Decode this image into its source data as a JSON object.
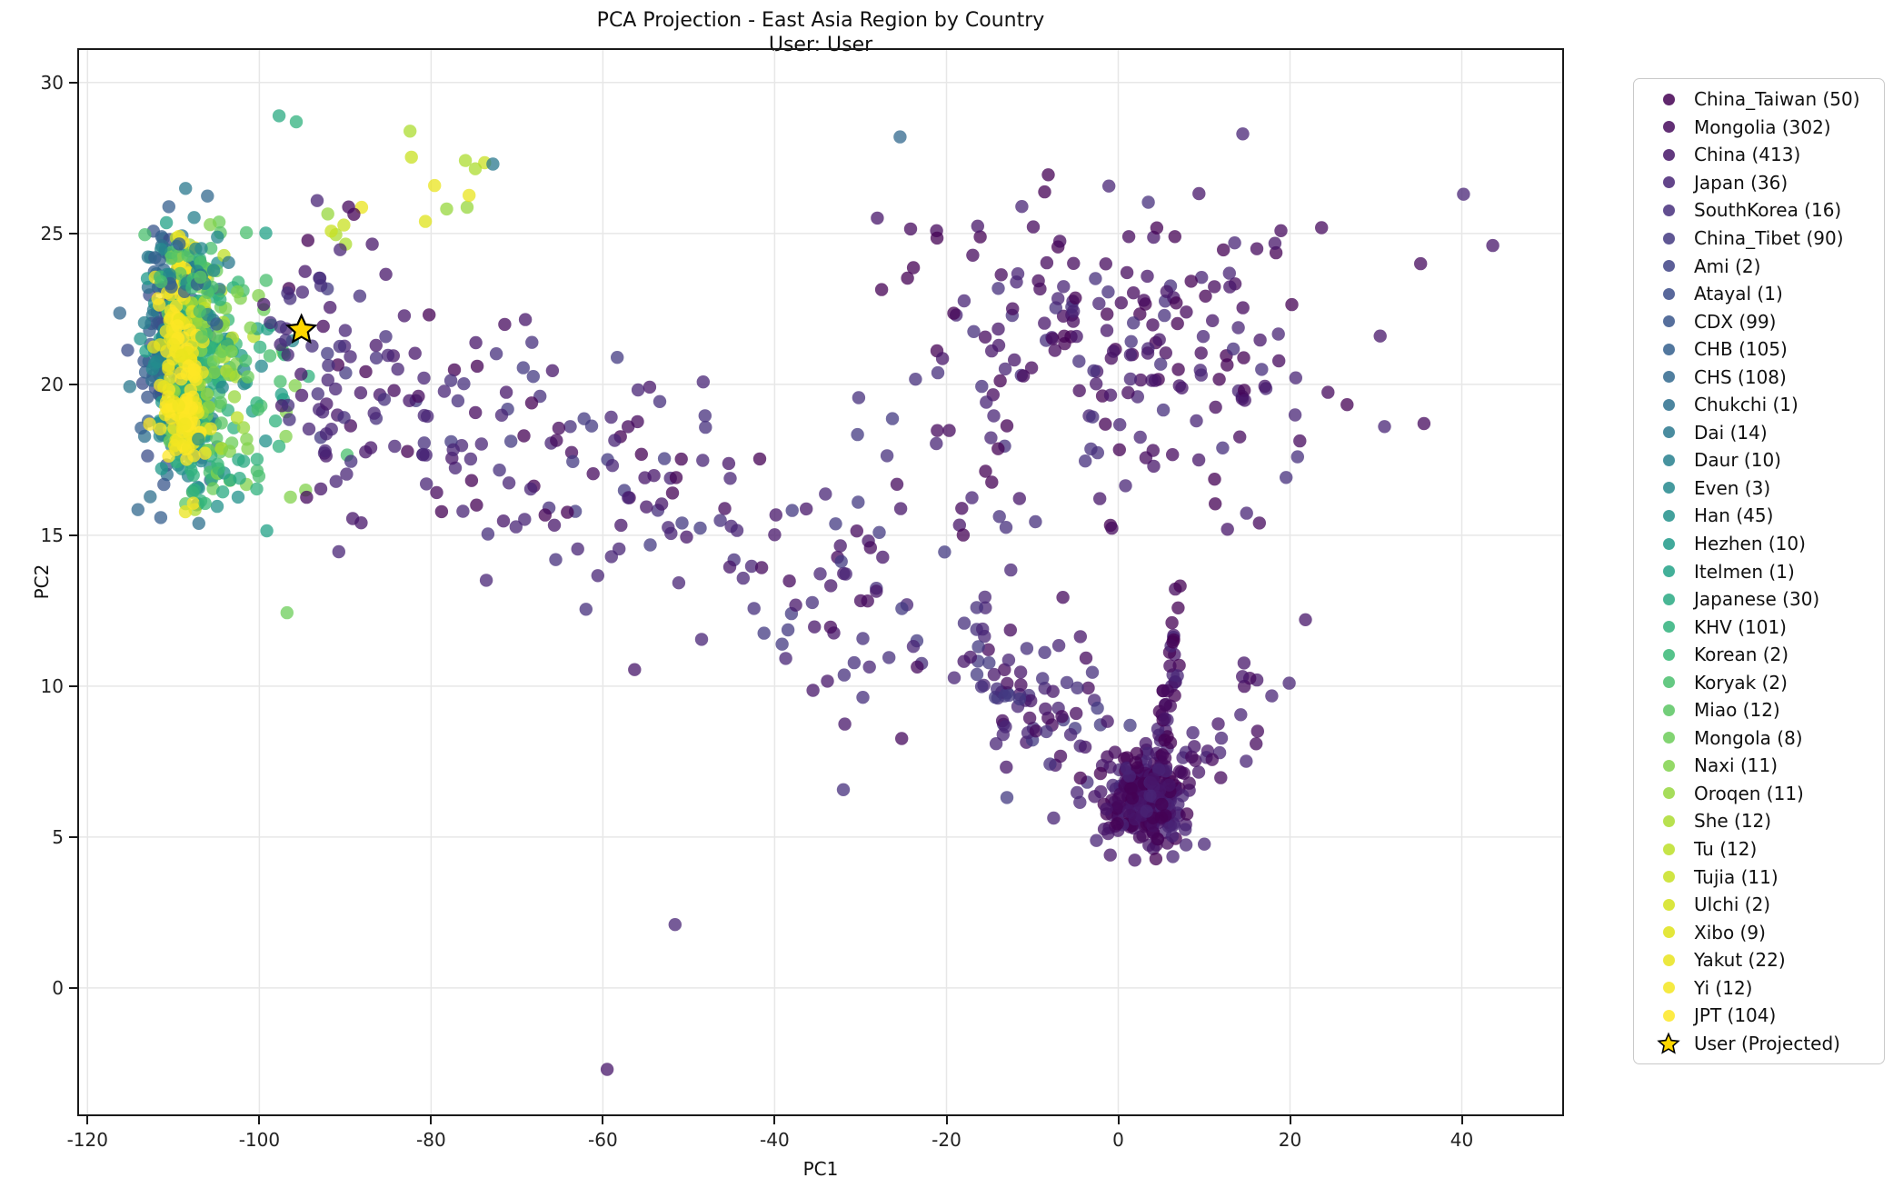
{
  "title": {
    "line1": "PCA Projection - East Asia Region by Country",
    "line2": "User: User"
  },
  "colors": {
    "background": "#ffffff",
    "grid": "#e7e7e7",
    "frame": "#1a1a1a",
    "tick": "#1a1a1a",
    "star_fill": "#FFD700",
    "star_edge": "#000000"
  },
  "chart_data": {
    "type": "scatter",
    "title": "PCA Projection - East Asia Region by Country",
    "subtitle": "User: User",
    "xlabel": "PC1",
    "ylabel": "PC2",
    "xlim": [
      -121.2,
      51.9
    ],
    "ylim": [
      -4.25,
      31.14
    ],
    "xticks": [
      -120,
      -100,
      -80,
      -60,
      -40,
      -20,
      0,
      20,
      40
    ],
    "yticks": [
      0,
      5,
      10,
      15,
      20,
      25,
      30
    ],
    "grid": true,
    "legend_position": "outside-right",
    "marker_alpha": 0.75,
    "marker_radius_px": 7.2,
    "categories": [
      {
        "name": "China_Taiwan",
        "count": 50,
        "label": "China_Taiwan (50)",
        "color": "#440154"
      },
      {
        "name": "Mongolia",
        "count": 302,
        "label": "Mongolia (302)",
        "color": "#460a5d"
      },
      {
        "name": "China",
        "count": 413,
        "label": "China (413)",
        "color": "#471669"
      },
      {
        "name": "Japan",
        "count": 36,
        "label": "Japan (36)",
        "color": "#482475"
      },
      {
        "name": "SouthKorea",
        "count": 16,
        "label": "SouthKorea (16)",
        "color": "#462f7c"
      },
      {
        "name": "China_Tibet",
        "count": 90,
        "label": "China_Tibet (90)",
        "color": "#433981"
      },
      {
        "name": "Ami",
        "count": 2,
        "label": "Ami (2)",
        "color": "#404386"
      },
      {
        "name": "Atayal",
        "count": 1,
        "label": "Atayal (1)",
        "color": "#3c4d8a"
      },
      {
        "name": "CDX",
        "count": 99,
        "label": "CDX (99)",
        "color": "#38568b"
      },
      {
        "name": "CHB",
        "count": 105,
        "label": "CHB (105)",
        "color": "#345f8d"
      },
      {
        "name": "CHS",
        "count": 108,
        "label": "CHS (108)",
        "color": "#31688e"
      },
      {
        "name": "Chukchi",
        "count": 1,
        "label": "Chukchi (1)",
        "color": "#2d708e"
      },
      {
        "name": "Dai",
        "count": 14,
        "label": "Dai (14)",
        "color": "#2a788e"
      },
      {
        "name": "Daur",
        "count": 10,
        "label": "Daur (10)",
        "color": "#27808e"
      },
      {
        "name": "Even",
        "count": 3,
        "label": "Even (3)",
        "color": "#24888d"
      },
      {
        "name": "Han",
        "count": 45,
        "label": "Han (45)",
        "color": "#22918b"
      },
      {
        "name": "Hezhen",
        "count": 10,
        "label": "Hezhen (10)",
        "color": "#209a8a"
      },
      {
        "name": "Itelmen",
        "count": 1,
        "label": "Itelmen (1)",
        "color": "#22a287"
      },
      {
        "name": "Japanese",
        "count": 30,
        "label": "Japanese (30)",
        "color": "#29a982"
      },
      {
        "name": "KHV",
        "count": 101,
        "label": "KHV (101)",
        "color": "#30b17d"
      },
      {
        "name": "Korean",
        "count": 2,
        "label": "Korean (2)",
        "color": "#38b877"
      },
      {
        "name": "Koryak",
        "count": 2,
        "label": "Koryak (2)",
        "color": "#4abf6d"
      },
      {
        "name": "Miao",
        "count": 12,
        "label": "Miao (12)",
        "color": "#5bc663"
      },
      {
        "name": "Mongola",
        "count": 8,
        "label": "Mongola (8)",
        "color": "#6ccd59"
      },
      {
        "name": "Naxi",
        "count": 11,
        "label": "Naxi (11)",
        "color": "#81d24c"
      },
      {
        "name": "Oroqen",
        "count": 11,
        "label": "Oroqen (11)",
        "color": "#97d73e"
      },
      {
        "name": "She",
        "count": 12,
        "label": "She (12)",
        "color": "#acdc30"
      },
      {
        "name": "Tu",
        "count": 12,
        "label": "Tu (12)",
        "color": "#bcdf28"
      },
      {
        "name": "Tujia",
        "count": 11,
        "label": "Tujia (11)",
        "color": "#c8e022"
      },
      {
        "name": "Ulchi",
        "count": 2,
        "label": "Ulchi (2)",
        "color": "#d4e21c"
      },
      {
        "name": "Xibo",
        "count": 9,
        "label": "Xibo (9)",
        "color": "#dfe319"
      },
      {
        "name": "Yakut",
        "count": 22,
        "label": "Yakut (22)",
        "color": "#e9e41d"
      },
      {
        "name": "Yi",
        "count": 12,
        "label": "Yi (12)",
        "color": "#f3e621"
      },
      {
        "name": "JPT",
        "count": 104,
        "label": "JPT (104)",
        "color": "#fde725"
      }
    ],
    "user_label": "User (Projected)",
    "user_point": {
      "x": -95.1,
      "y": 21.8,
      "color": "#FFD700"
    },
    "clusters": [
      {
        "name": "ref-blue",
        "type": "gauss",
        "n": 170,
        "cx": -110.2,
        "cy": 20.9,
        "sx": 1.8,
        "sy": 2.0,
        "colors": [
          "#38568b",
          "#345f8d",
          "#31688e",
          "#3c4d8a",
          "#2d708e",
          "#2a788e"
        ]
      },
      {
        "name": "ref-teal",
        "type": "gauss",
        "n": 170,
        "cx": -108.4,
        "cy": 20.2,
        "sx": 1.9,
        "sy": 2.0,
        "colors": [
          "#27808e",
          "#24888d",
          "#22918b",
          "#209a8a",
          "#22a287"
        ]
      },
      {
        "name": "ref-green",
        "type": "gauss",
        "n": 130,
        "cx": -106.9,
        "cy": 20.1,
        "sx": 2.1,
        "sy": 2.0,
        "colors": [
          "#29a982",
          "#30b17d",
          "#38b877",
          "#4abf6d",
          "#5bc663",
          "#6ccd59"
        ]
      },
      {
        "name": "ref-lightgreen",
        "type": "gauss",
        "n": 60,
        "cx": -105.8,
        "cy": 21.2,
        "sx": 2.5,
        "sy": 2.1,
        "colors": [
          "#81d24c",
          "#97d73e",
          "#acdc30",
          "#bcdf28"
        ]
      },
      {
        "name": "ref-yellow",
        "type": "gauss",
        "n": 125,
        "cx": -109.4,
        "cy": 21.1,
        "sx": 1.3,
        "sy": 1.8,
        "colors": [
          "#fde725",
          "#f3e621",
          "#e9e41d"
        ]
      },
      {
        "name": "ref-yellow-low",
        "type": "gauss",
        "n": 30,
        "cx": -108.9,
        "cy": 18.5,
        "sx": 1.1,
        "sy": 0.9,
        "colors": [
          "#fde725",
          "#f3e621"
        ]
      },
      {
        "name": "ref-top",
        "type": "gauss",
        "n": 55,
        "cx": -107.5,
        "cy": 23.8,
        "sx": 2.6,
        "sy": 0.8,
        "colors": [
          "#345f8d",
          "#24888d",
          "#38b877",
          "#4abf6d",
          "#2a788e",
          "#5bc663"
        ]
      },
      {
        "name": "top-arc",
        "type": "band",
        "n": 16,
        "x1": -92,
        "y1": 25.2,
        "x2": -74,
        "y2": 26.6,
        "spread": 0.8,
        "colors": [
          "#acdc30",
          "#c8e022",
          "#dfe319",
          "#97d73e",
          "#e9e41d"
        ]
      },
      {
        "name": "ref-right-mix",
        "type": "gauss",
        "n": 55,
        "cx": -99,
        "cy": 20.6,
        "sx": 2.8,
        "sy": 2.3,
        "colors": [
          "#30b17d",
          "#22a287",
          "#4abf6d",
          "#24888d",
          "#6ccd59",
          "#81d24c"
        ]
      },
      {
        "name": "ref-below",
        "type": "gauss",
        "n": 12,
        "cx": -103.5,
        "cy": 16.9,
        "sx": 2.4,
        "sy": 0.7,
        "colors": [
          "#29a982",
          "#38b877",
          "#22918b"
        ]
      },
      {
        "name": "band-main",
        "type": "band",
        "n": 165,
        "x1": -99,
        "y1": 21.5,
        "x2": -42,
        "y2": 15.2,
        "spread": 2.1,
        "colors": [
          "#482475",
          "#471669",
          "#460a5d",
          "#462f7c",
          "#440154",
          "#482475",
          "#433981"
        ]
      },
      {
        "name": "mid-sparse",
        "type": "gauss",
        "n": 70,
        "cx": -31,
        "cy": 13.6,
        "sx": 9,
        "sy": 2.4,
        "colors": [
          "#482475",
          "#471669",
          "#462f7c",
          "#460a5d",
          "#433981"
        ]
      },
      {
        "name": "upper-right-field",
        "type": "gauss",
        "n": 215,
        "cx": -2,
        "cy": 21.3,
        "sx": 12.5,
        "sy": 3.1,
        "clip": [
          -33,
          27,
          15,
          27.2
        ],
        "colors": [
          "#440154",
          "#460a5d",
          "#471669",
          "#482475",
          "#462f7c"
        ]
      },
      {
        "name": "down-band",
        "type": "band",
        "n": 95,
        "x1": -19,
        "y1": 10.8,
        "x2": 1,
        "y2": 7,
        "spread": 1.4,
        "colors": [
          "#482475",
          "#471669",
          "#462f7c",
          "#433981",
          "#460a5d"
        ]
      },
      {
        "name": "dense-blob",
        "type": "gauss",
        "n": 255,
        "cx": 3.2,
        "cy": 6.2,
        "sx": 2.2,
        "sy": 0.75,
        "colors": [
          "#440154",
          "#460a5d",
          "#471669",
          "#482475"
        ]
      },
      {
        "name": "blob-arm",
        "type": "band",
        "n": 45,
        "x1": 4.5,
        "y1": 7.2,
        "x2": 6.8,
        "y2": 11.8,
        "spread": 0.9,
        "colors": [
          "#460a5d",
          "#471669",
          "#482475",
          "#440154"
        ]
      },
      {
        "name": "blob-right-fan",
        "type": "band",
        "n": 25,
        "x1": 7,
        "y1": 6.8,
        "x2": 19,
        "y2": 10.2,
        "spread": 1.1,
        "colors": [
          "#471669",
          "#482475",
          "#460a5d"
        ]
      },
      {
        "name": "left-cluster-purples",
        "type": "gauss",
        "n": 40,
        "cx": -92.5,
        "cy": 20.3,
        "sx": 3.2,
        "sy": 2.4,
        "colors": [
          "#482475",
          "#471669",
          "#462f7c"
        ]
      }
    ],
    "outliers": [
      {
        "x": -97.7,
        "y": 28.9,
        "c": "#29a982"
      },
      {
        "x": -95.7,
        "y": 28.7,
        "c": "#30b17d"
      },
      {
        "x": -72.8,
        "y": 27.3,
        "c": "#2a788e"
      },
      {
        "x": -25.4,
        "y": 28.2,
        "c": "#31688e"
      },
      {
        "x": 14.5,
        "y": 28.3,
        "c": "#482475"
      },
      {
        "x": 30.5,
        "y": 21.6,
        "c": "#471669"
      },
      {
        "x": 35.2,
        "y": 24.0,
        "c": "#460a5d"
      },
      {
        "x": 40.2,
        "y": 26.3,
        "c": "#482475"
      },
      {
        "x": 43.6,
        "y": 24.6,
        "c": "#471669"
      },
      {
        "x": 31.0,
        "y": 18.6,
        "c": "#482475"
      },
      {
        "x": 35.6,
        "y": 18.7,
        "c": "#460a5d"
      },
      {
        "x": 21.8,
        "y": 12.2,
        "c": "#471669"
      },
      {
        "x": 19.9,
        "y": 10.1,
        "c": "#482475"
      },
      {
        "x": -51.6,
        "y": 2.1,
        "c": "#482475"
      },
      {
        "x": -59.5,
        "y": -2.7,
        "c": "#471669"
      }
    ]
  }
}
